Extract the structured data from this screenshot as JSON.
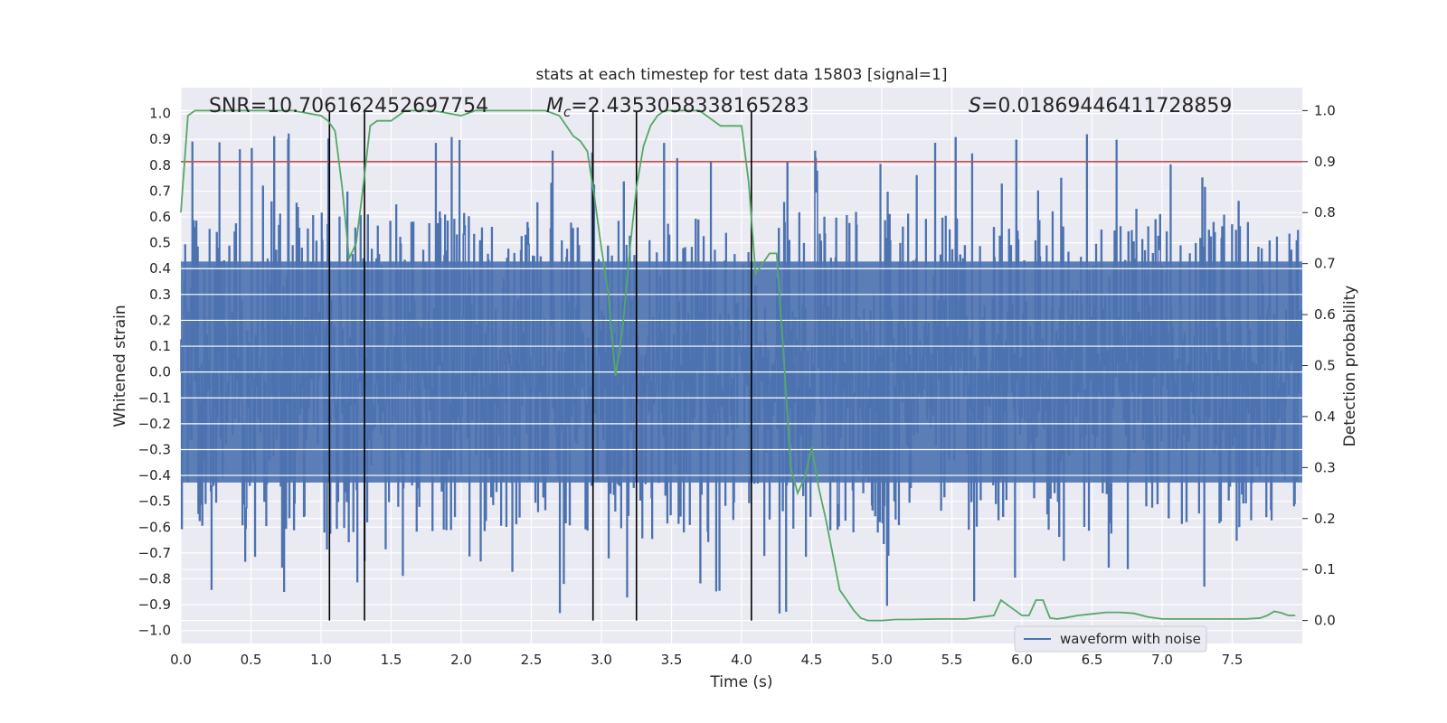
{
  "chart_data": {
    "type": "line",
    "title": "stats at each timestep for test data 15803 [signal=1]",
    "xlabel": "Time (s)",
    "ylabel": "Whitened strain",
    "y2label": "Detection probability",
    "xlim": [
      0.0,
      8.0
    ],
    "ylim": [
      -1.05,
      1.1
    ],
    "y2lim": [
      -0.045,
      1.045
    ],
    "xticks": [
      "0.0",
      "0.5",
      "1.0",
      "1.5",
      "2.0",
      "2.5",
      "3.0",
      "3.5",
      "4.0",
      "4.5",
      "5.0",
      "5.5",
      "6.0",
      "6.5",
      "7.0",
      "7.5"
    ],
    "yticks": [
      "1.0",
      "0.9",
      "0.8",
      "0.7",
      "0.6",
      "0.5",
      "0.4",
      "0.3",
      "0.2",
      "0.1",
      "0.0",
      "−0.1",
      "−0.2",
      "−0.3",
      "−0.4",
      "−0.5",
      "−0.6",
      "−0.7",
      "−0.8",
      "−0.9",
      "−1.0"
    ],
    "y2ticks": [
      "1.0",
      "0.9",
      "0.8",
      "0.7",
      "0.6",
      "0.5",
      "0.4",
      "0.3",
      "0.2",
      "0.1",
      "0.0"
    ],
    "grid": true,
    "annotations": {
      "snr": "SNR=10.706162452697754",
      "mc_symbol": "M",
      "mc_sub": "c",
      "mc_value": "=2.4353058338165283",
      "s_symbol": "S",
      "s_value": "=0.01869446411728859"
    },
    "legend": {
      "label": "waveform with noise",
      "placement": "lower-right"
    },
    "threshold": {
      "axis": "right",
      "value": 0.9,
      "color": "#c44e52"
    },
    "vlines": {
      "x": [
        1.06,
        1.31,
        2.94,
        3.25,
        4.07
      ],
      "ymin": 0.0,
      "ymax": 1.0,
      "color": "#000000"
    },
    "series": [
      {
        "name": "waveform with noise",
        "axis": "left",
        "color": "#4c72b0",
        "style": "noise",
        "x_range": [
          0.0,
          8.0
        ],
        "y_range": [
          -0.94,
          0.92
        ],
        "core_amplitude": 0.45
      },
      {
        "axis": "right",
        "color": "#55a868",
        "x": [
          0.0,
          0.05,
          0.1,
          0.2,
          0.4,
          0.6,
          0.8,
          1.0,
          1.05,
          1.1,
          1.15,
          1.2,
          1.25,
          1.3,
          1.35,
          1.4,
          1.45,
          1.5,
          1.55,
          1.6,
          1.65,
          1.7,
          1.8,
          2.0,
          2.1,
          2.2,
          2.4,
          2.6,
          2.7,
          2.8,
          2.85,
          2.9,
          2.95,
          3.0,
          3.05,
          3.1,
          3.15,
          3.2,
          3.25,
          3.3,
          3.35,
          3.4,
          3.45,
          3.5,
          3.6,
          3.7,
          3.8,
          3.85,
          3.9,
          4.0,
          4.05,
          4.1,
          4.15,
          4.2,
          4.25,
          4.3,
          4.35,
          4.4,
          4.45,
          4.5,
          4.55,
          4.6,
          4.65,
          4.7,
          4.75,
          4.8,
          4.85,
          4.9,
          5.0,
          5.1,
          5.2,
          5.4,
          5.6,
          5.8,
          5.85,
          5.9,
          5.95,
          6.0,
          6.05,
          6.1,
          6.15,
          6.2,
          6.25,
          6.3,
          6.4,
          6.5,
          6.6,
          6.7,
          6.8,
          6.9,
          7.0,
          7.2,
          7.4,
          7.6,
          7.7,
          7.75,
          7.8,
          7.85,
          7.9,
          7.95
        ],
        "y": [
          0.8,
          0.99,
          1.0,
          1.0,
          1.0,
          1.0,
          1.0,
          0.99,
          0.98,
          0.96,
          0.85,
          0.71,
          0.74,
          0.85,
          0.97,
          0.98,
          0.98,
          0.98,
          0.99,
          1.0,
          1.0,
          1.0,
          1.0,
          0.99,
          1.0,
          1.0,
          1.0,
          1.0,
          0.99,
          0.95,
          0.94,
          0.92,
          0.83,
          0.73,
          0.64,
          0.48,
          0.57,
          0.72,
          0.85,
          0.93,
          0.97,
          0.99,
          1.0,
          1.0,
          1.0,
          1.0,
          0.98,
          0.97,
          0.97,
          0.97,
          0.86,
          0.68,
          0.7,
          0.72,
          0.72,
          0.52,
          0.3,
          0.25,
          0.28,
          0.34,
          0.26,
          0.2,
          0.13,
          0.06,
          0.04,
          0.02,
          0.005,
          0.0,
          0.0,
          0.002,
          0.002,
          0.003,
          0.003,
          0.01,
          0.04,
          0.03,
          0.02,
          0.01,
          0.01,
          0.04,
          0.04,
          0.005,
          0.003,
          0.005,
          0.01,
          0.013,
          0.016,
          0.016,
          0.014,
          0.007,
          0.003,
          0.003,
          0.003,
          0.003,
          0.005,
          0.01,
          0.018,
          0.015,
          0.01,
          0.01
        ]
      }
    ]
  }
}
